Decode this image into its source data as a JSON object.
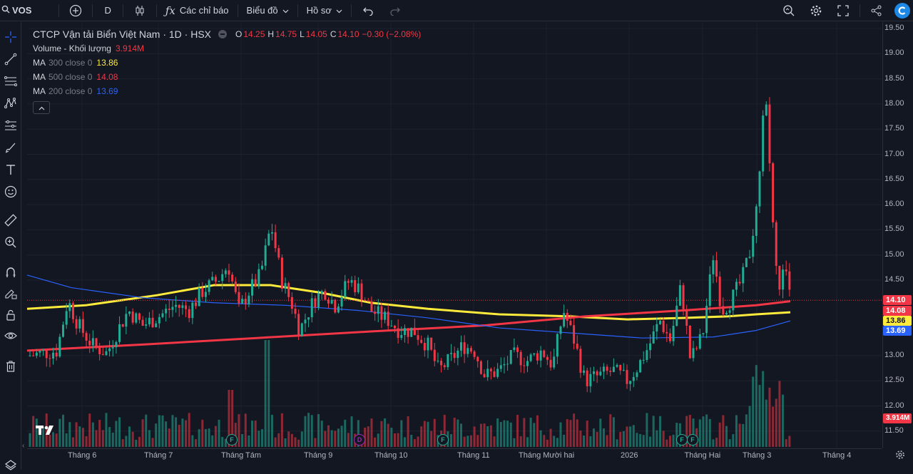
{
  "toolbar": {
    "symbol": "VOS",
    "interval": "D",
    "indicators_label": "Các chỉ báo",
    "chart_type_label": "Biểu đồ",
    "profile_label": "Hồ sơ"
  },
  "legend": {
    "title": "CTCP Vận tải Biển Việt Nam · 1D · HSX",
    "ohlc": {
      "o_label": "O",
      "o": "14.25",
      "h_label": "H",
      "h": "14.75",
      "l_label": "L",
      "l": "14.05",
      "c_label": "C",
      "c": "14.10",
      "change": "−0.30 (−2.08%)"
    },
    "volume_label": "Volume - Khối lượng",
    "volume_value": "3.914M",
    "ma300_name": "MA",
    "ma300_params": "300 close 0",
    "ma300_value": "13.86",
    "ma500_name": "MA",
    "ma500_params": "500 close 0",
    "ma500_value": "14.08",
    "ma200_name": "MA",
    "ma200_params": "200 close 0",
    "ma200_value": "13.69"
  },
  "price_axis": {
    "labels": [
      "19.50",
      "19.00",
      "18.50",
      "18.00",
      "17.50",
      "17.00",
      "16.50",
      "16.00",
      "15.50",
      "15.00",
      "14.50",
      "13.00",
      "12.50",
      "12.00",
      "11.50"
    ],
    "last_price": "14.10",
    "ma500_badge": "14.08",
    "ma300_badge": "13.86",
    "ma200_badge": "13.69",
    "volume_badge": "3.914M"
  },
  "time_axis": {
    "labels": [
      "Tháng 6",
      "Tháng 7",
      "Tháng Tám",
      "Tháng 9",
      "Tháng 10",
      "Tháng 11",
      "Tháng Mười hai",
      "2026",
      "Tháng Hai",
      "Tháng 3",
      "Tháng 4"
    ]
  },
  "events": [
    {
      "letter": "F",
      "kind": "f"
    },
    {
      "letter": "D",
      "kind": "d"
    },
    {
      "letter": "F",
      "kind": "f"
    },
    {
      "letter": "F",
      "kind": "f"
    },
    {
      "letter": "F",
      "kind": "f"
    }
  ],
  "colors": {
    "up": "#22ab94",
    "down": "#f23645",
    "ma300": "#ffeb3b",
    "ma500": "#f23645",
    "ma200": "#2962ff",
    "background": "#131722"
  },
  "chart_data": {
    "type": "candlestick",
    "ylim": [
      11.3,
      19.6
    ],
    "series": [
      {
        "name": "MA 300 close 0",
        "last": 13.86
      },
      {
        "name": "MA 500 close 0",
        "last": 14.08
      },
      {
        "name": "MA 200 close 0",
        "last": 13.69
      }
    ],
    "last_close": 14.1,
    "last_volume": "3.914M"
  }
}
